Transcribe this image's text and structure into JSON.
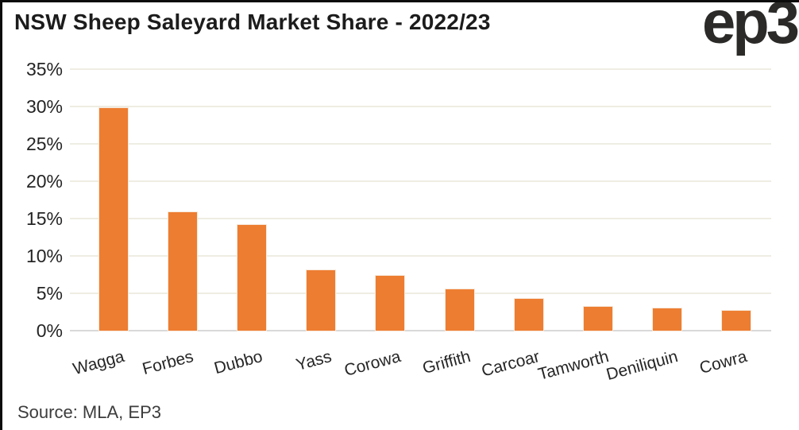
{
  "header": {
    "title": "NSW Sheep Saleyard Market Share - 2022/23",
    "logo_text": "ep3"
  },
  "footer": {
    "source": "Source: MLA, EP3"
  },
  "chart_data": {
    "type": "bar",
    "title": "NSW Sheep Saleyard Market Share - 2022/23",
    "categories": [
      "Wagga",
      "Forbes",
      "Dubbo",
      "Yass",
      "Corowa",
      "Griffith",
      "Carcoar",
      "Tamworth",
      "Deniliquin",
      "Cowra"
    ],
    "values": [
      29.8,
      15.9,
      14.1,
      8.1,
      7.3,
      5.5,
      4.3,
      3.2,
      3.0,
      2.7
    ],
    "unit": "%",
    "xlabel": "",
    "ylabel": "",
    "ylim": [
      0,
      35
    ],
    "ytick_step": 5,
    "ytick_labels": [
      "0%",
      "5%",
      "10%",
      "15%",
      "20%",
      "25%",
      "30%",
      "35%"
    ],
    "grid": true,
    "legend": "none",
    "bar_color": "#ed7d31",
    "gridline_color": "#efede3",
    "zero_line_color": "#d9d9d9",
    "source": "Source: MLA, EP3"
  }
}
